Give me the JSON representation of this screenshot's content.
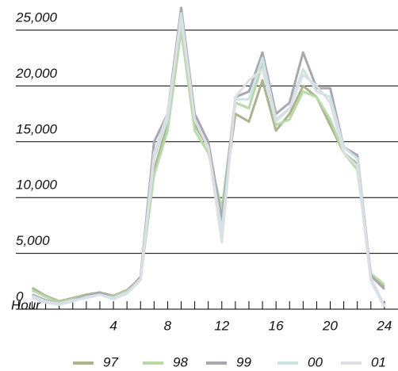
{
  "chart_data": {
    "type": "line",
    "x_label": "Hour",
    "x": [
      -2,
      -1,
      0,
      1,
      2,
      3,
      4,
      5,
      6,
      7,
      8,
      9,
      10,
      11,
      12,
      13,
      14,
      15,
      16,
      17,
      18,
      19,
      20,
      21,
      22,
      23,
      24
    ],
    "series": [
      {
        "name": "97",
        "color": "#a9b58f",
        "values": [
          1900,
          1200,
          700,
          1000,
          1300,
          1500,
          1200,
          1700,
          2800,
          12500,
          16500,
          25500,
          16500,
          14500,
          8500,
          17500,
          16800,
          20500,
          16000,
          17500,
          20000,
          19000,
          16500,
          14000,
          13000,
          3000,
          2000
        ]
      },
      {
        "name": "98",
        "color": "#b8d9aa",
        "values": [
          1700,
          1100,
          600,
          900,
          1200,
          1400,
          1100,
          1600,
          2700,
          12000,
          16000,
          25000,
          16000,
          14000,
          9000,
          18500,
          18000,
          22000,
          16500,
          17000,
          19500,
          19000,
          17000,
          14000,
          12500,
          3200,
          2200
        ]
      },
      {
        "name": "99",
        "color": "#a8a8b0",
        "values": [
          1300,
          800,
          500,
          800,
          1200,
          1500,
          1000,
          1500,
          2900,
          15000,
          17500,
          27000,
          17500,
          15000,
          8000,
          19000,
          19500,
          23000,
          17500,
          18500,
          23000,
          19800,
          19800,
          14500,
          13800,
          3000,
          1800
        ]
      },
      {
        "name": "00",
        "color": "#cde3e6",
        "values": [
          1000,
          600,
          400,
          700,
          1100,
          1300,
          900,
          1400,
          2600,
          13500,
          17000,
          26500,
          17000,
          14500,
          7000,
          18800,
          18800,
          22500,
          17000,
          18000,
          21500,
          19500,
          19000,
          14500,
          13500,
          2800,
          300
        ]
      },
      {
        "name": "01",
        "color": "#dcdfe6",
        "values": [
          1200,
          700,
          500,
          800,
          1000,
          1300,
          1000,
          1500,
          2700,
          14000,
          17500,
          26000,
          17000,
          14500,
          6000,
          19000,
          20500,
          21500,
          16800,
          18000,
          21000,
          20000,
          18500,
          14000,
          12800,
          2500,
          200
        ]
      }
    ],
    "xlim": [
      -3.2,
      24.3
    ],
    "xticks": [
      4,
      8,
      12,
      16,
      20,
      24
    ],
    "ylim": [
      0,
      25000
    ],
    "yticks": [
      0,
      {
        "value": 5000,
        "label": "5,000"
      },
      {
        "value": 10000,
        "label": "10,000"
      },
      {
        "value": 15000,
        "label": "15,000"
      },
      {
        "value": 20000,
        "label": "20,000"
      },
      {
        "value": 25000,
        "label": "25,000"
      }
    ],
    "grid": true,
    "legend": "bottom"
  }
}
